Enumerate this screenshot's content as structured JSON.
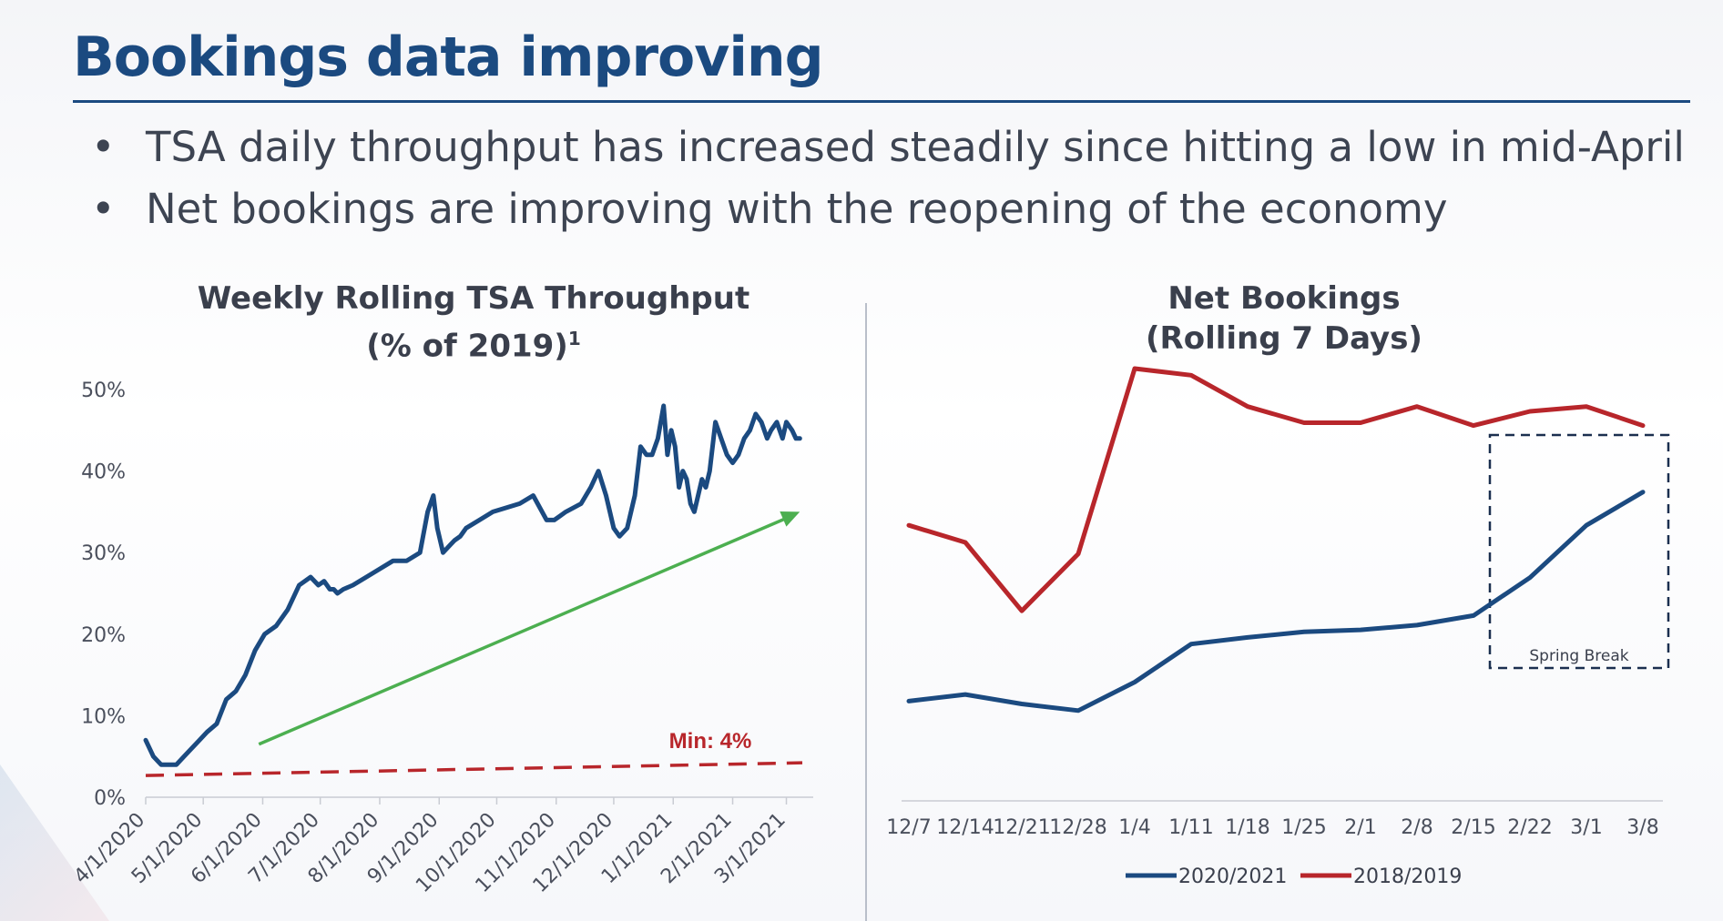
{
  "slide": {
    "title": "Bookings data improving",
    "bullets": [
      "TSA daily throughput has increased steadily since hitting a low in mid-April",
      "Net bookings are improving with the reopening of the economy"
    ],
    "bullet_glyph": "•"
  },
  "colors": {
    "title": "#1b4a80",
    "navy_series": "#1b4a80",
    "red_series": "#b8262b",
    "trend_arrow": "#4caf50",
    "min_line": "#b8262b"
  },
  "chart_data": [
    {
      "type": "line",
      "title_line1": "Weekly Rolling TSA Throughput",
      "title_line2": "(% of 2019)",
      "title_superscript": "1",
      "ylim": [
        0,
        50
      ],
      "yticks": [
        0,
        10,
        20,
        30,
        40,
        50
      ],
      "ytick_labels": [
        "0%",
        "10%",
        "20%",
        "30%",
        "40%",
        "50%"
      ],
      "xlim": [
        "2020-04-01",
        "2021-03-15"
      ],
      "xtick_labels": [
        "4/1/2020",
        "5/1/2020",
        "6/1/2020",
        "7/1/2020",
        "8/1/2020",
        "9/1/2020",
        "10/1/2020",
        "11/1/2020",
        "12/1/2020",
        "1/1/2021",
        "2/1/2021",
        "3/1/2021"
      ],
      "xtick_dates": [
        "2020-04-01",
        "2020-05-01",
        "2020-06-01",
        "2020-07-01",
        "2020-08-01",
        "2020-09-01",
        "2020-10-01",
        "2020-11-01",
        "2020-12-01",
        "2021-01-01",
        "2021-02-01",
        "2021-03-01"
      ],
      "series": [
        {
          "x": [
            "2020-04-01",
            "2020-04-05",
            "2020-04-09",
            "2020-04-13",
            "2020-04-17",
            "2020-04-21",
            "2020-04-25",
            "2020-04-29",
            "2020-05-03",
            "2020-05-08",
            "2020-05-13",
            "2020-05-18",
            "2020-05-23",
            "2020-05-28",
            "2020-06-02",
            "2020-06-08",
            "2020-06-14",
            "2020-06-20",
            "2020-06-26",
            "2020-06-30",
            "2020-07-03",
            "2020-07-06",
            "2020-07-08",
            "2020-07-10",
            "2020-07-13",
            "2020-07-18",
            "2020-07-25",
            "2020-08-01",
            "2020-08-08",
            "2020-08-15",
            "2020-08-22",
            "2020-08-26",
            "2020-08-29",
            "2020-08-31",
            "2020-09-03",
            "2020-09-05",
            "2020-09-07",
            "2020-09-09",
            "2020-09-12",
            "2020-09-15",
            "2020-09-22",
            "2020-09-29",
            "2020-10-06",
            "2020-10-13",
            "2020-10-20",
            "2020-10-27",
            "2020-10-31",
            "2020-11-03",
            "2020-11-06",
            "2020-11-10",
            "2020-11-14",
            "2020-11-19",
            "2020-11-23",
            "2020-11-27",
            "2020-12-01",
            "2020-12-04",
            "2020-12-08",
            "2020-12-12",
            "2020-12-15",
            "2020-12-18",
            "2020-12-21",
            "2020-12-24",
            "2020-12-27",
            "2020-12-29",
            "2020-12-31",
            "2021-01-02",
            "2021-01-04",
            "2021-01-06",
            "2021-01-08",
            "2021-01-10",
            "2021-01-12",
            "2021-01-14",
            "2021-01-16",
            "2021-01-18",
            "2021-01-20",
            "2021-01-23",
            "2021-01-26",
            "2021-01-29",
            "2021-02-01",
            "2021-02-04",
            "2021-02-07",
            "2021-02-10",
            "2021-02-13",
            "2021-02-16",
            "2021-02-19",
            "2021-02-21",
            "2021-02-24",
            "2021-02-27",
            "2021-03-01",
            "2021-03-04",
            "2021-03-06",
            "2021-03-08"
          ],
          "values": [
            7,
            5,
            4,
            4,
            4,
            5,
            6,
            7,
            8,
            9,
            12,
            13,
            15,
            18,
            20,
            21,
            23,
            26,
            27,
            26,
            26.5,
            25.5,
            25.5,
            25,
            25.5,
            26,
            27,
            28,
            29,
            29,
            30,
            35,
            37,
            33,
            30,
            30.5,
            31,
            31.5,
            32,
            33,
            34,
            35,
            35.5,
            36,
            37,
            34,
            34,
            34.5,
            35,
            35.5,
            36,
            38,
            40,
            37,
            33,
            32,
            33,
            37,
            43,
            42,
            42,
            44,
            48,
            42,
            45,
            43,
            38,
            40,
            39,
            36,
            35,
            37,
            39,
            38,
            40,
            46,
            44,
            42,
            41,
            42,
            44,
            45,
            47,
            46,
            44,
            45,
            46,
            44,
            46,
            45,
            44,
            44
          ]
        }
      ],
      "annotations": [
        {
          "text": "Min: 4%",
          "value": 4
        }
      ],
      "trend_arrow": {
        "from": [
          "2020-05-30",
          6.5
        ],
        "to": [
          "2021-03-08",
          35
        ]
      },
      "min_line_value": 4
    },
    {
      "type": "line",
      "title_line1": "Net Bookings",
      "title_line2": "(Rolling 7 Days)",
      "categories": [
        "12/7",
        "12/14",
        "12/21",
        "12/28",
        "1/4",
        "1/11",
        "1/18",
        "1/25",
        "2/1",
        "2/8",
        "2/15",
        "2/22",
        "3/1",
        "3/8"
      ],
      "legend_position": "bottom",
      "series": [
        {
          "name": "2020/2021",
          "color": "#1b4a80",
          "values": [
            10.5,
            11.2,
            10.2,
            9.5,
            12.5,
            16.5,
            17.2,
            17.8,
            18,
            18.5,
            19.5,
            23.5,
            29,
            32.5
          ]
        },
        {
          "name": "2018/2019",
          "color": "#b8262b",
          "values": [
            29,
            27.2,
            20,
            26,
            45.5,
            44.8,
            41.5,
            39.8,
            39.8,
            41.5,
            39.5,
            41,
            41.5,
            39.5
          ]
        }
      ],
      "annotations": [
        {
          "text": "Spring Break",
          "from_category": "2/15",
          "to_category": "3/8"
        }
      ]
    }
  ]
}
